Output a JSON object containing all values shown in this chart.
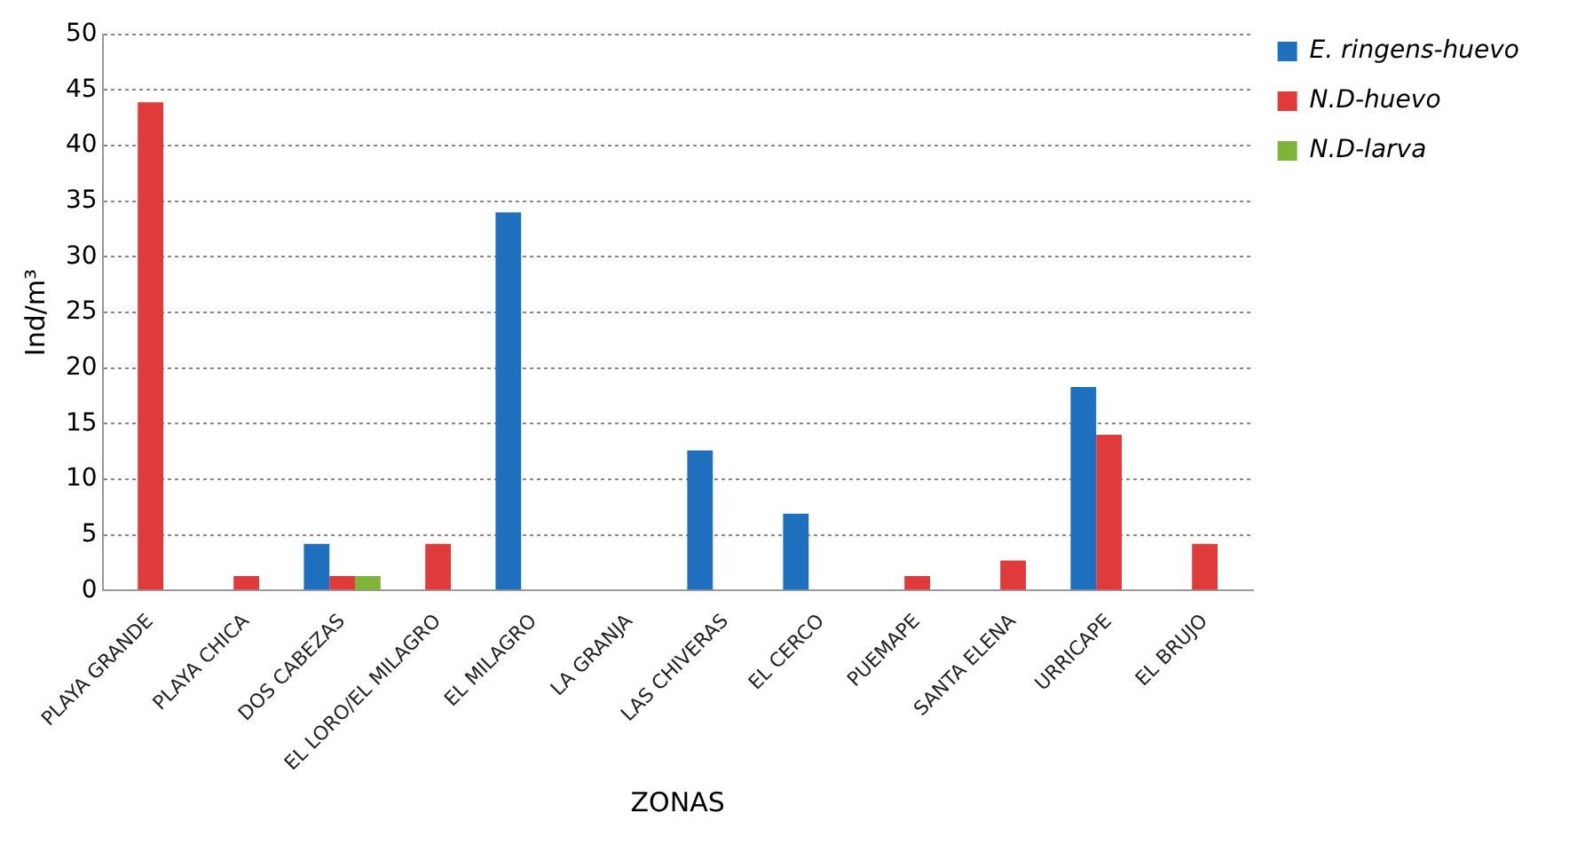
{
  "chart_data": {
    "type": "bar",
    "xlabel": "ZONAS",
    "ylabel": "Ind/m³",
    "categories": [
      "PLAYA GRANDE",
      "PLAYA CHICA",
      "DOS CABEZAS",
      "EL LORO/EL MILAGRO",
      "EL MILAGRO",
      "LA GRANJA",
      "LAS CHIVERAS",
      "EL CERCO",
      "PUEMAPE",
      "SANTA ELENA",
      "URRICAPE",
      "EL BRUJO"
    ],
    "series": [
      {
        "name": "E. ringens-huevo",
        "color": "#1f6fbf",
        "values": [
          null,
          null,
          4.2,
          null,
          34,
          null,
          12.6,
          6.9,
          null,
          null,
          18.3,
          null
        ]
      },
      {
        "name": "N.D-huevo",
        "color": "#e03a3a",
        "values": [
          43.9,
          1.3,
          1.3,
          4.2,
          null,
          null,
          null,
          null,
          1.3,
          2.7,
          14.0,
          4.2
        ]
      },
      {
        "name": "N.D-larva",
        "color": "#7fb339",
        "values": [
          null,
          null,
          1.3,
          null,
          null,
          null,
          null,
          null,
          null,
          null,
          null,
          null
        ]
      }
    ],
    "ylim": [
      0,
      50
    ],
    "yticks": [
      0,
      5,
      10,
      15,
      20,
      25,
      30,
      35,
      40,
      45,
      50
    ],
    "grid": "y",
    "legend": "top right"
  }
}
